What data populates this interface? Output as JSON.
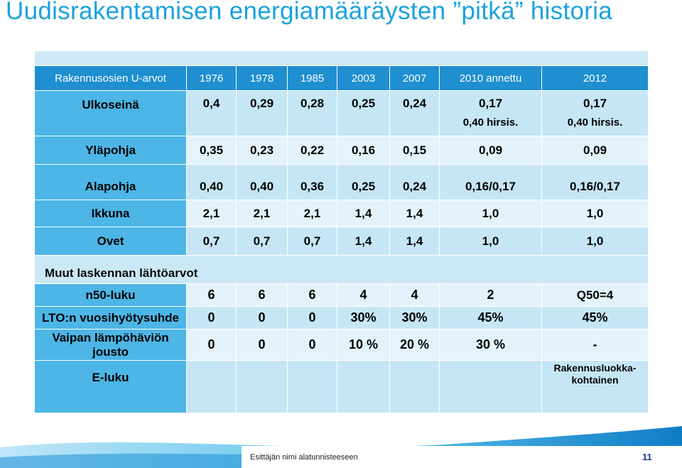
{
  "title": "Uudisrakentamisen energiamääräysten ”pitkä” historia",
  "header": {
    "label": "Rakennusosien U-arvot",
    "years": [
      "1976",
      "1978",
      "1985",
      "2003",
      "2007",
      "2010 annettu",
      "2012"
    ]
  },
  "rows": [
    {
      "label": "Ulkoseinä",
      "values": [
        "0,4",
        "0,29",
        "0,28",
        "0,25",
        "0,24",
        "0,17",
        "0,17"
      ],
      "extra_2010": "0,40 hirsis.",
      "extra_2012": "0,40 hirsis."
    },
    {
      "label": "Yläpohja",
      "values": [
        "0,35",
        "0,23",
        "0,22",
        "0,16",
        "0,15",
        "0,09",
        "0,09"
      ]
    },
    {
      "label": "Alapohja",
      "values": [
        "0,40",
        "0,40",
        "0,36",
        "0,25",
        "0,24",
        "0,16/0,17",
        "0,16/0,17"
      ]
    },
    {
      "label": "Ikkuna",
      "values": [
        "2,1",
        "2,1",
        "2,1",
        "1,4",
        "1,4",
        "1,0",
        "1,0"
      ]
    },
    {
      "label": "Ovet",
      "values": [
        "0,7",
        "0,7",
        "0,7",
        "1,4",
        "1,4",
        "1,0",
        "1,0"
      ]
    }
  ],
  "section2": {
    "label": "Muut laskennan lähtöarvot",
    "rows": [
      {
        "label": "n50-luku",
        "values": [
          "6",
          "6",
          "6",
          "4",
          "4",
          "2",
          "Q50=4"
        ]
      },
      {
        "label": "LTO:n vuosihyötysuhde",
        "values": [
          "0",
          "0",
          "0",
          "30%",
          "30%",
          "45%",
          "45%"
        ]
      },
      {
        "label": "Vaipan lämpöhäviön jousto",
        "values": [
          "0",
          "0",
          "0",
          "10 %",
          "20 %",
          "30 %",
          "-"
        ]
      },
      {
        "label": "E-luku",
        "values": [
          "",
          "",
          "",
          "",
          "",
          "",
          "Rakennusluokka-\nkohtainen"
        ]
      }
    ]
  },
  "footer": {
    "text": "Esittäjän nimi alatunnisteeseen",
    "page": "11"
  },
  "colors": {
    "title": "#1aa3dd",
    "header_bar": "#1f8fd0",
    "label_cell": "#4db6e6",
    "band_dark": "#c6e6f6",
    "band_light": "#e4f3fb",
    "footer_blue": "#1a8fd6"
  }
}
